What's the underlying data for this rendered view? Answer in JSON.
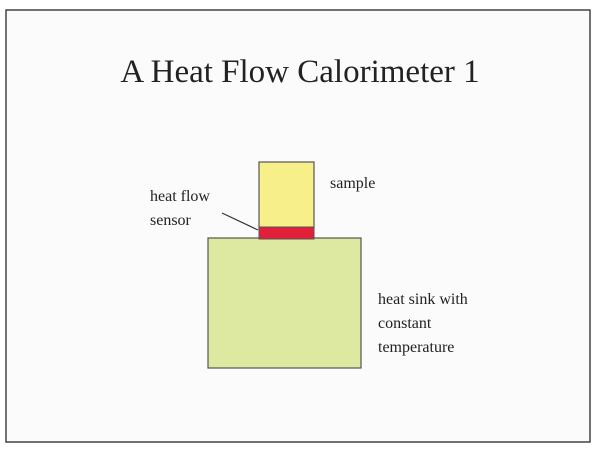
{
  "title": "A Heat Flow Calorimeter 1",
  "labels": {
    "sample": "sample",
    "sensor": [
      "heat flow",
      "sensor"
    ],
    "sink": [
      "heat sink with",
      "constant",
      "temperature"
    ]
  }
}
